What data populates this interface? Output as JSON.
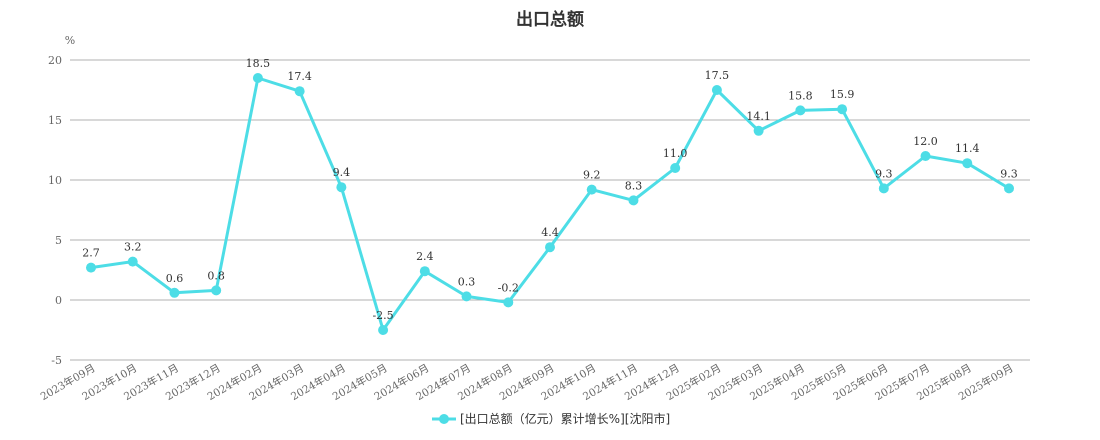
{
  "chart_data": {
    "type": "line",
    "title": "出口总额",
    "y_unit": "%",
    "ylim": [
      -5,
      20
    ],
    "yticks": [
      -5,
      0,
      5,
      10,
      15,
      20
    ],
    "grid": true,
    "legend_position": "bottom",
    "color": "#4DDDE6",
    "categories": [
      "2023年09月",
      "2023年10月",
      "2023年11月",
      "2023年12月",
      "2024年02月",
      "2024年03月",
      "2024年04月",
      "2024年05月",
      "2024年06月",
      "2024年07月",
      "2024年08月",
      "2024年09月",
      "2024年10月",
      "2024年11月",
      "2024年12月",
      "2025年02月",
      "2025年03月",
      "2025年04月",
      "2025年05月",
      "2025年06月",
      "2025年07月",
      "2025年08月",
      "2025年09月"
    ],
    "series": [
      {
        "name": "[出口总额（亿元）累计增长%][沈阳市]",
        "values": [
          2.7,
          3.2,
          0.6,
          0.8,
          18.5,
          17.4,
          9.4,
          -2.5,
          2.4,
          0.3,
          -0.2,
          4.4,
          9.2,
          8.3,
          11.0,
          17.5,
          14.1,
          15.8,
          15.9,
          9.3,
          12.0,
          11.4,
          9.3
        ],
        "labels": [
          "2.7",
          "3.2",
          "0.6",
          "0.8",
          "18.5",
          "17.4",
          "9.4",
          "-2.5",
          "2.4",
          "0.3",
          "-0.2",
          "4.4",
          "9.2",
          "8.3",
          "11.0",
          "17.5",
          "14.1",
          "15.8",
          "15.9",
          "9.3",
          "12.0",
          "11.4",
          "9.3"
        ]
      }
    ]
  }
}
